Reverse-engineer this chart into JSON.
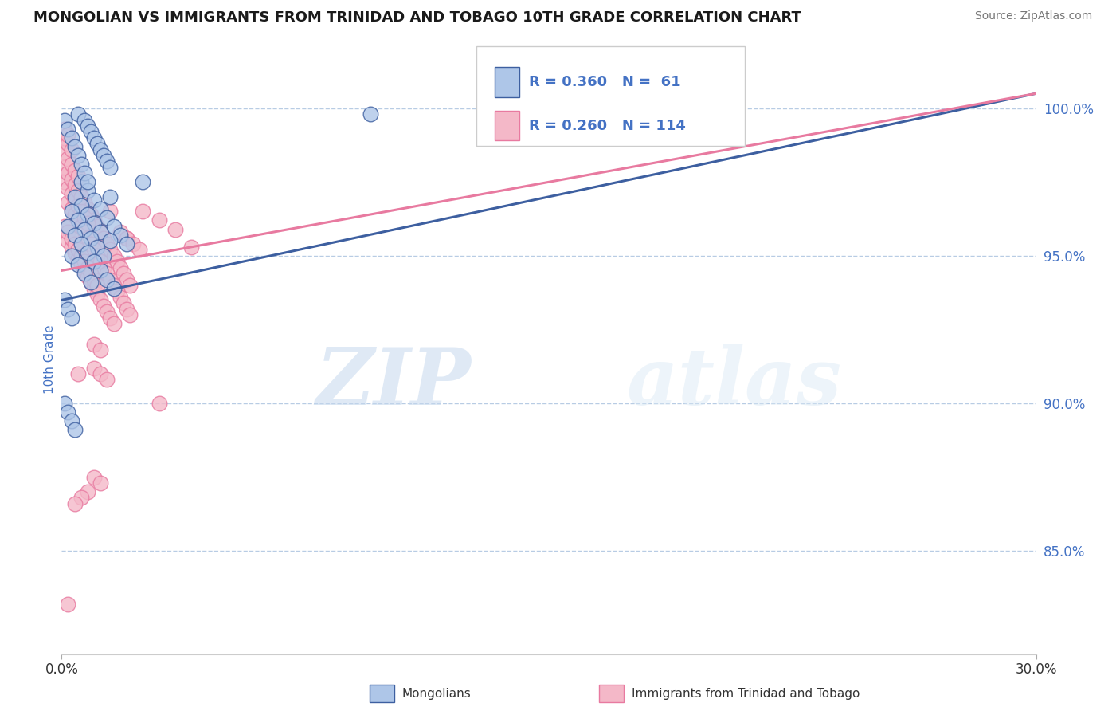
{
  "title": "MONGOLIAN VS IMMIGRANTS FROM TRINIDAD AND TOBAGO 10TH GRADE CORRELATION CHART",
  "source": "Source: ZipAtlas.com",
  "ylabel": "10th Grade",
  "y_ticks": [
    "85.0%",
    "90.0%",
    "95.0%",
    "100.0%"
  ],
  "y_tick_vals": [
    0.85,
    0.9,
    0.95,
    1.0
  ],
  "x_min": 0.0,
  "x_max": 0.3,
  "y_min": 0.815,
  "y_max": 1.015,
  "legend_r1": "R = 0.360",
  "legend_n1": "N =  61",
  "legend_r2": "R = 0.260",
  "legend_n2": "N = 114",
  "color_blue": "#aec6e8",
  "color_pink": "#f4b8c8",
  "line_blue": "#3d5fa0",
  "line_pink": "#e87aa0",
  "blue_trend_x0": 0.0,
  "blue_trend_y0": 0.935,
  "blue_trend_x1": 0.3,
  "blue_trend_y1": 1.005,
  "pink_trend_x0": 0.0,
  "pink_trend_y0": 0.945,
  "pink_trend_x1": 0.3,
  "pink_trend_y1": 1.005,
  "scatter_blue_x": [
    0.005,
    0.007,
    0.008,
    0.009,
    0.01,
    0.011,
    0.012,
    0.013,
    0.014,
    0.015,
    0.006,
    0.008,
    0.01,
    0.012,
    0.014,
    0.016,
    0.018,
    0.02,
    0.004,
    0.006,
    0.008,
    0.01,
    0.012,
    0.015,
    0.003,
    0.005,
    0.007,
    0.009,
    0.011,
    0.013,
    0.002,
    0.004,
    0.006,
    0.008,
    0.01,
    0.012,
    0.014,
    0.016,
    0.003,
    0.005,
    0.007,
    0.009,
    0.001,
    0.002,
    0.003,
    0.004,
    0.005,
    0.006,
    0.007,
    0.008,
    0.001,
    0.002,
    0.003,
    0.155,
    0.095,
    0.001,
    0.002,
    0.003,
    0.004,
    0.015,
    0.025
  ],
  "scatter_blue_y": [
    0.998,
    0.996,
    0.994,
    0.992,
    0.99,
    0.988,
    0.986,
    0.984,
    0.982,
    0.98,
    0.975,
    0.972,
    0.969,
    0.966,
    0.963,
    0.96,
    0.957,
    0.954,
    0.97,
    0.967,
    0.964,
    0.961,
    0.958,
    0.955,
    0.965,
    0.962,
    0.959,
    0.956,
    0.953,
    0.95,
    0.96,
    0.957,
    0.954,
    0.951,
    0.948,
    0.945,
    0.942,
    0.939,
    0.95,
    0.947,
    0.944,
    0.941,
    0.996,
    0.993,
    0.99,
    0.987,
    0.984,
    0.981,
    0.978,
    0.975,
    0.935,
    0.932,
    0.929,
    0.998,
    0.998,
    0.9,
    0.897,
    0.894,
    0.891,
    0.97,
    0.975
  ],
  "scatter_pink_x": [
    0.002,
    0.003,
    0.004,
    0.005,
    0.006,
    0.007,
    0.008,
    0.009,
    0.01,
    0.011,
    0.012,
    0.013,
    0.014,
    0.015,
    0.016,
    0.017,
    0.018,
    0.019,
    0.02,
    0.021,
    0.002,
    0.003,
    0.004,
    0.005,
    0.006,
    0.007,
    0.008,
    0.009,
    0.01,
    0.011,
    0.012,
    0.013,
    0.014,
    0.015,
    0.016,
    0.017,
    0.018,
    0.019,
    0.02,
    0.021,
    0.002,
    0.003,
    0.004,
    0.005,
    0.006,
    0.007,
    0.008,
    0.009,
    0.01,
    0.011,
    0.012,
    0.013,
    0.014,
    0.015,
    0.016,
    0.001,
    0.002,
    0.003,
    0.004,
    0.005,
    0.006,
    0.007,
    0.008,
    0.009,
    0.01,
    0.011,
    0.001,
    0.002,
    0.003,
    0.004,
    0.005,
    0.006,
    0.007,
    0.008,
    0.001,
    0.002,
    0.003,
    0.004,
    0.005,
    0.006,
    0.001,
    0.002,
    0.003,
    0.004,
    0.005,
    0.001,
    0.002,
    0.003,
    0.001,
    0.002,
    0.025,
    0.03,
    0.035,
    0.02,
    0.04,
    0.018,
    0.02,
    0.022,
    0.024,
    0.015,
    0.01,
    0.012,
    0.03,
    0.16,
    0.005,
    0.01,
    0.012,
    0.014,
    0.01,
    0.012,
    0.008,
    0.006,
    0.004,
    0.002
  ],
  "scatter_pink_y": [
    0.978,
    0.976,
    0.974,
    0.972,
    0.97,
    0.968,
    0.966,
    0.964,
    0.962,
    0.96,
    0.958,
    0.956,
    0.954,
    0.952,
    0.95,
    0.948,
    0.946,
    0.944,
    0.942,
    0.94,
    0.968,
    0.966,
    0.964,
    0.962,
    0.96,
    0.958,
    0.956,
    0.954,
    0.952,
    0.95,
    0.948,
    0.946,
    0.944,
    0.942,
    0.94,
    0.938,
    0.936,
    0.934,
    0.932,
    0.93,
    0.955,
    0.953,
    0.951,
    0.949,
    0.947,
    0.945,
    0.943,
    0.941,
    0.939,
    0.937,
    0.935,
    0.933,
    0.931,
    0.929,
    0.927,
    0.96,
    0.958,
    0.956,
    0.954,
    0.952,
    0.95,
    0.948,
    0.946,
    0.944,
    0.942,
    0.94,
    0.975,
    0.973,
    0.971,
    0.969,
    0.967,
    0.965,
    0.963,
    0.961,
    0.98,
    0.978,
    0.976,
    0.974,
    0.972,
    0.97,
    0.985,
    0.983,
    0.981,
    0.979,
    0.977,
    0.99,
    0.988,
    0.986,
    0.993,
    0.991,
    0.965,
    0.962,
    0.959,
    0.956,
    0.953,
    0.958,
    0.956,
    0.954,
    0.952,
    0.965,
    0.92,
    0.918,
    0.9,
    1.0,
    0.91,
    0.912,
    0.91,
    0.908,
    0.875,
    0.873,
    0.87,
    0.868,
    0.866,
    0.832
  ],
  "watermark_zip": "ZIP",
  "watermark_atlas": "atlas",
  "title_color": "#1a1a1a",
  "axis_label_color": "#4472c4",
  "tick_color": "#4472c4",
  "grid_color": "#b8cce4",
  "legend_text_color": "#4472c4"
}
